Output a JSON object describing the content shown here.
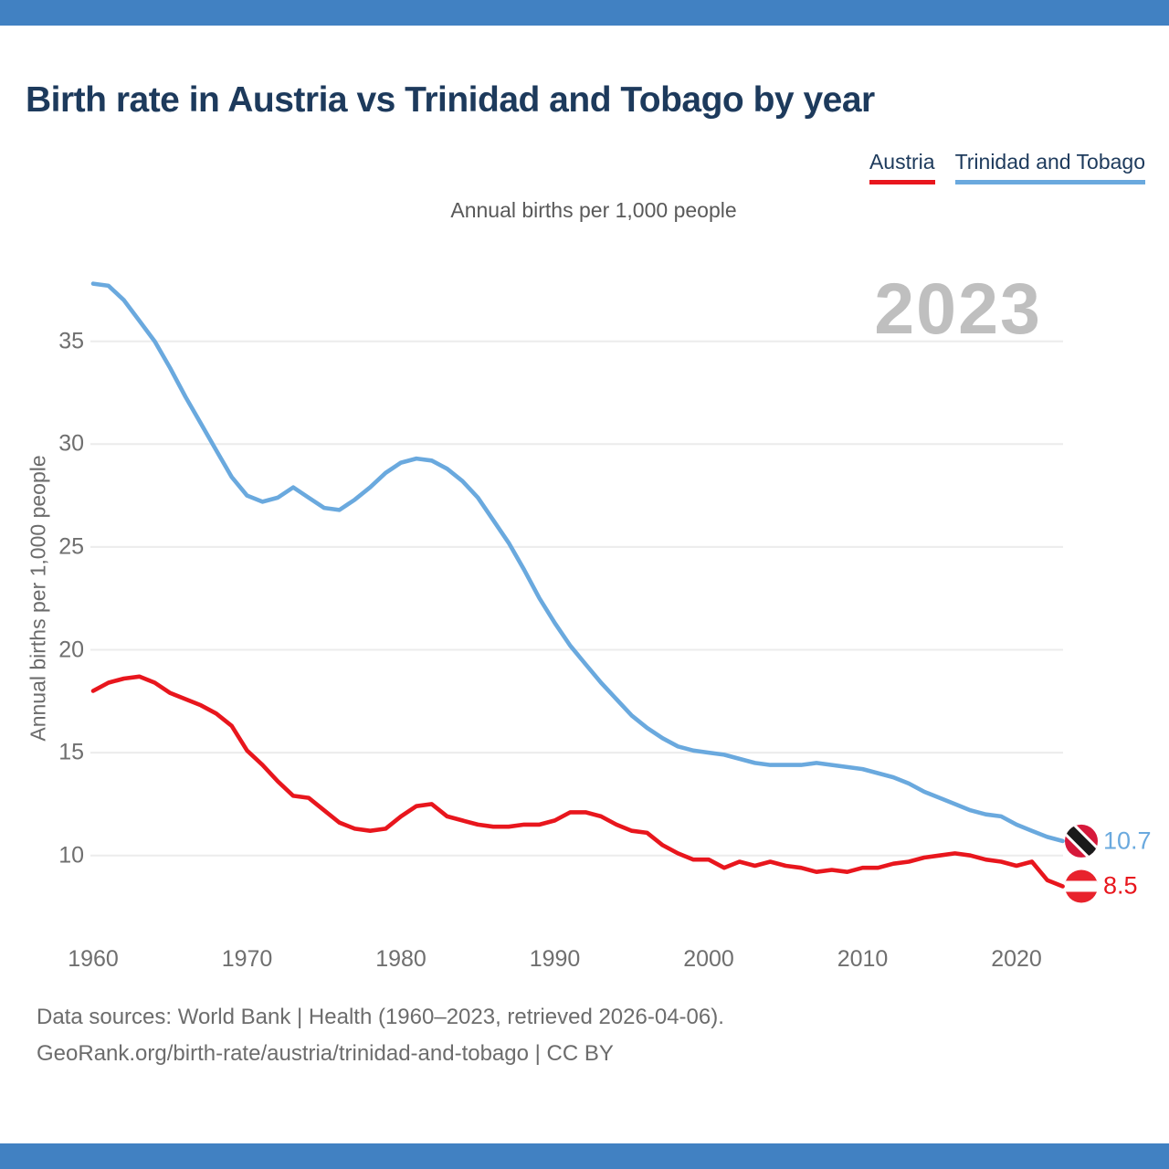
{
  "header": {
    "title": "Birth rate in Austria vs Trinidad and Tobago by year",
    "subtitle": "Annual births per 1,000 people"
  },
  "watermark": {
    "text": "2023"
  },
  "legend": {
    "items": [
      {
        "label": "Austria",
        "color": "#e8161d"
      },
      {
        "label": "Trinidad and Tobago",
        "color": "#6aa9de"
      }
    ]
  },
  "footer": {
    "line1": "Data sources: World Bank | Health (1960–2023, retrieved 2026-04-06).",
    "line2": "GeoRank.org/birth-rate/austria/trinidad-and-tobago | CC BY"
  },
  "chart_data": {
    "type": "line",
    "title": "Birth rate in Austria vs Trinidad and Tobago by year",
    "ylabel": "Annual births per 1,000 people",
    "xlabel": "",
    "grid": "horizontal",
    "gridline_color": "#ececec",
    "xlim": [
      1960,
      2023
    ],
    "ylim": [
      8,
      38.5
    ],
    "xticks": [
      1960,
      1970,
      1980,
      1990,
      2000,
      2010,
      2020
    ],
    "yticks": [
      10,
      15,
      20,
      25,
      30,
      35
    ],
    "x": [
      1960,
      1961,
      1962,
      1963,
      1964,
      1965,
      1966,
      1967,
      1968,
      1969,
      1970,
      1971,
      1972,
      1973,
      1974,
      1975,
      1976,
      1977,
      1978,
      1979,
      1980,
      1981,
      1982,
      1983,
      1984,
      1985,
      1986,
      1987,
      1988,
      1989,
      1990,
      1991,
      1992,
      1993,
      1994,
      1995,
      1996,
      1997,
      1998,
      1999,
      2000,
      2001,
      2002,
      2003,
      2004,
      2005,
      2006,
      2007,
      2008,
      2009,
      2010,
      2011,
      2012,
      2013,
      2014,
      2015,
      2016,
      2017,
      2018,
      2019,
      2020,
      2021,
      2022,
      2023
    ],
    "series": [
      {
        "name": "Austria",
        "color": "#e8161d",
        "values": [
          18.0,
          18.4,
          18.6,
          18.7,
          18.4,
          17.9,
          17.6,
          17.3,
          16.9,
          16.3,
          15.1,
          14.4,
          13.6,
          12.9,
          12.8,
          12.2,
          11.6,
          11.3,
          11.2,
          11.3,
          11.9,
          12.4,
          12.5,
          11.9,
          11.7,
          11.5,
          11.4,
          11.4,
          11.5,
          11.5,
          11.7,
          12.1,
          12.1,
          11.9,
          11.5,
          11.2,
          11.1,
          10.5,
          10.1,
          9.8,
          9.8,
          9.4,
          9.7,
          9.5,
          9.7,
          9.5,
          9.4,
          9.2,
          9.3,
          9.2,
          9.4,
          9.4,
          9.6,
          9.7,
          9.9,
          10.0,
          10.1,
          10.0,
          9.8,
          9.7,
          9.5,
          9.7,
          8.8,
          8.5
        ]
      },
      {
        "name": "Trinidad and Tobago",
        "color": "#6aa9de",
        "values": [
          37.8,
          37.7,
          37.0,
          36.0,
          35.0,
          33.7,
          32.3,
          31.0,
          29.7,
          28.4,
          27.5,
          27.2,
          27.4,
          27.9,
          27.4,
          26.9,
          26.8,
          27.3,
          27.9,
          28.6,
          29.1,
          29.3,
          29.2,
          28.8,
          28.2,
          27.4,
          26.3,
          25.2,
          23.9,
          22.5,
          21.3,
          20.2,
          19.3,
          18.4,
          17.6,
          16.8,
          16.2,
          15.7,
          15.3,
          15.1,
          15.0,
          14.9,
          14.7,
          14.5,
          14.4,
          14.4,
          14.4,
          14.5,
          14.4,
          14.3,
          14.2,
          14.0,
          13.8,
          13.5,
          13.1,
          12.8,
          12.5,
          12.2,
          12.0,
          11.9,
          11.5,
          11.2,
          10.9,
          10.7
        ]
      }
    ],
    "end_labels": [
      {
        "series": "Trinidad and Tobago",
        "value": "10.7",
        "flag": "trinidad-and-tobago"
      },
      {
        "series": "Austria",
        "value": "8.5",
        "flag": "austria"
      }
    ]
  }
}
